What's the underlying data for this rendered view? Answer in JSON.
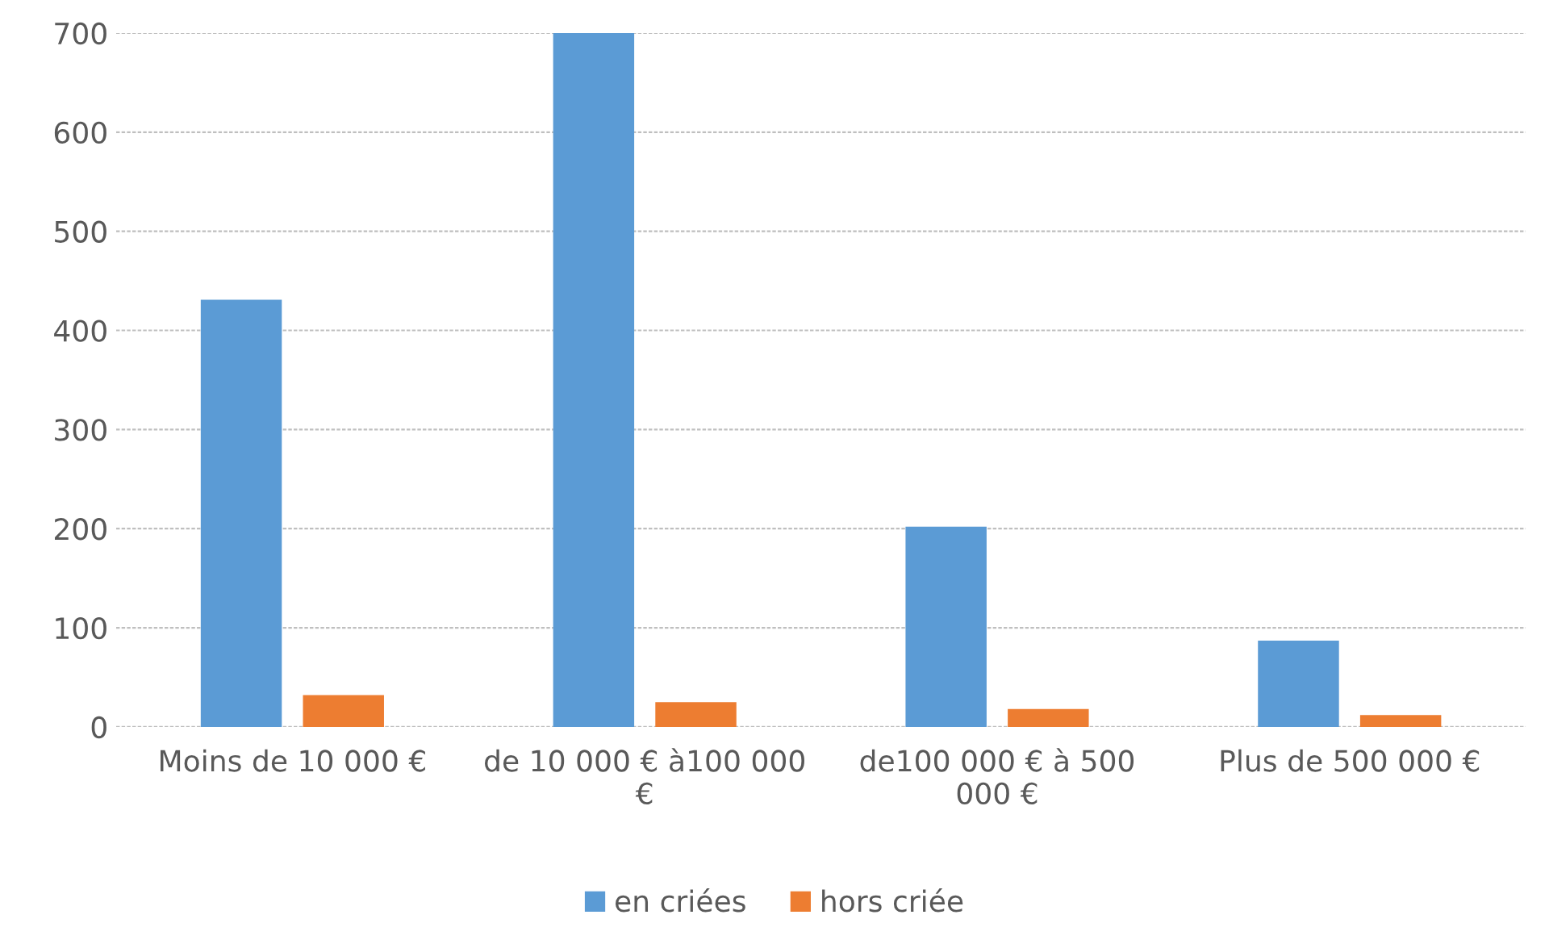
{
  "chart_data": {
    "type": "bar",
    "categories": [
      "Moins de 10 000 €",
      "de 10 000 € à100 000\n€",
      "de100 000 € à 500\n000 €",
      "Plus de 500 000 €"
    ],
    "series": [
      {
        "name": "en criées",
        "color": "#5b9bd5",
        "values": [
          431,
          700,
          202,
          87
        ]
      },
      {
        "name": "hors criée",
        "color": "#ed7d31",
        "values": [
          32,
          25,
          18,
          12
        ]
      }
    ],
    "ylim": [
      0,
      700
    ],
    "yticks": [
      0,
      100,
      200,
      300,
      400,
      500,
      600,
      700
    ],
    "grid": "y",
    "legend": "bottom"
  }
}
